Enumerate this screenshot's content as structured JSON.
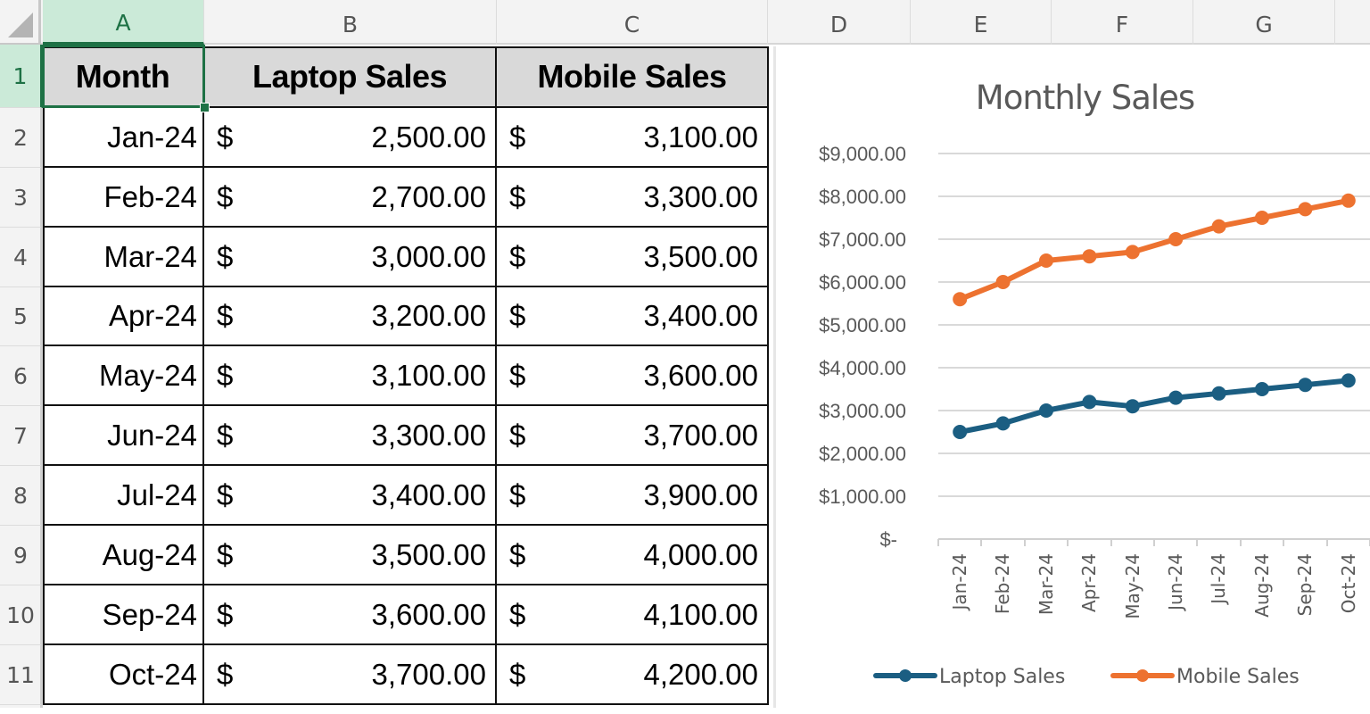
{
  "sheet": {
    "column_headers": [
      "A",
      "B",
      "C",
      "D",
      "E",
      "F",
      "G"
    ],
    "row_headers": [
      "1",
      "2",
      "3",
      "4",
      "5",
      "6",
      "7",
      "8",
      "9",
      "10",
      "11"
    ],
    "selected_cell": "A1",
    "selected_column": "A",
    "selected_row": "1"
  },
  "table": {
    "headers": [
      "Month",
      "Laptop Sales",
      "Mobile Sales"
    ],
    "currency_symbol": "$",
    "rows": [
      {
        "month": "Jan-24",
        "laptop": "2,500.00",
        "mobile": "3,100.00"
      },
      {
        "month": "Feb-24",
        "laptop": "2,700.00",
        "mobile": "3,300.00"
      },
      {
        "month": "Mar-24",
        "laptop": "3,000.00",
        "mobile": "3,500.00"
      },
      {
        "month": "Apr-24",
        "laptop": "3,200.00",
        "mobile": "3,400.00"
      },
      {
        "month": "May-24",
        "laptop": "3,100.00",
        "mobile": "3,600.00"
      },
      {
        "month": "Jun-24",
        "laptop": "3,300.00",
        "mobile": "3,700.00"
      },
      {
        "month": "Jul-24",
        "laptop": "3,400.00",
        "mobile": "3,900.00"
      },
      {
        "month": "Aug-24",
        "laptop": "3,500.00",
        "mobile": "4,000.00"
      },
      {
        "month": "Sep-24",
        "laptop": "3,600.00",
        "mobile": "4,100.00"
      },
      {
        "month": "Oct-24",
        "laptop": "3,700.00",
        "mobile": "4,200.00"
      }
    ]
  },
  "chart": {
    "title": "Monthly Sales",
    "y_tick_labels": [
      "$9,000.00",
      "$8,000.00",
      "$7,000.00",
      "$6,000.00",
      "$5,000.00",
      "$4,000.00",
      "$3,000.00",
      "$2,000.00",
      "$1,000.00",
      "$-"
    ],
    "x_tick_labels": [
      "Jan-24",
      "Feb-24",
      "Mar-24",
      "Apr-24",
      "May-24",
      "Jun-24",
      "Jul-24",
      "Aug-24",
      "Sep-24",
      "Oct-24"
    ],
    "legend": [
      {
        "label": "Laptop Sales",
        "color": "#1b5e82"
      },
      {
        "label": "Mobile Sales",
        "color": "#ed7230"
      }
    ]
  },
  "chart_data": {
    "type": "line",
    "stacked": true,
    "title": "Monthly Sales",
    "xlabel": "",
    "ylabel": "",
    "categories": [
      "Jan-24",
      "Feb-24",
      "Mar-24",
      "Apr-24",
      "May-24",
      "Jun-24",
      "Jul-24",
      "Aug-24",
      "Sep-24",
      "Oct-24"
    ],
    "series": [
      {
        "name": "Laptop Sales",
        "color": "#1b5e82",
        "values": [
          2500,
          2700,
          3000,
          3200,
          3100,
          3300,
          3400,
          3500,
          3600,
          3700
        ]
      },
      {
        "name": "Mobile Sales",
        "color": "#ed7230",
        "values": [
          3100,
          3300,
          3500,
          3400,
          3600,
          3700,
          3900,
          4000,
          4100,
          4200
        ],
        "plotted_cumulative": [
          5600,
          6000,
          6500,
          6600,
          6700,
          7000,
          7300,
          7500,
          7700,
          7900
        ]
      }
    ],
    "ylim": [
      0,
      9000
    ],
    "y_tick_step": 1000,
    "grid": true,
    "legend_position": "bottom"
  }
}
